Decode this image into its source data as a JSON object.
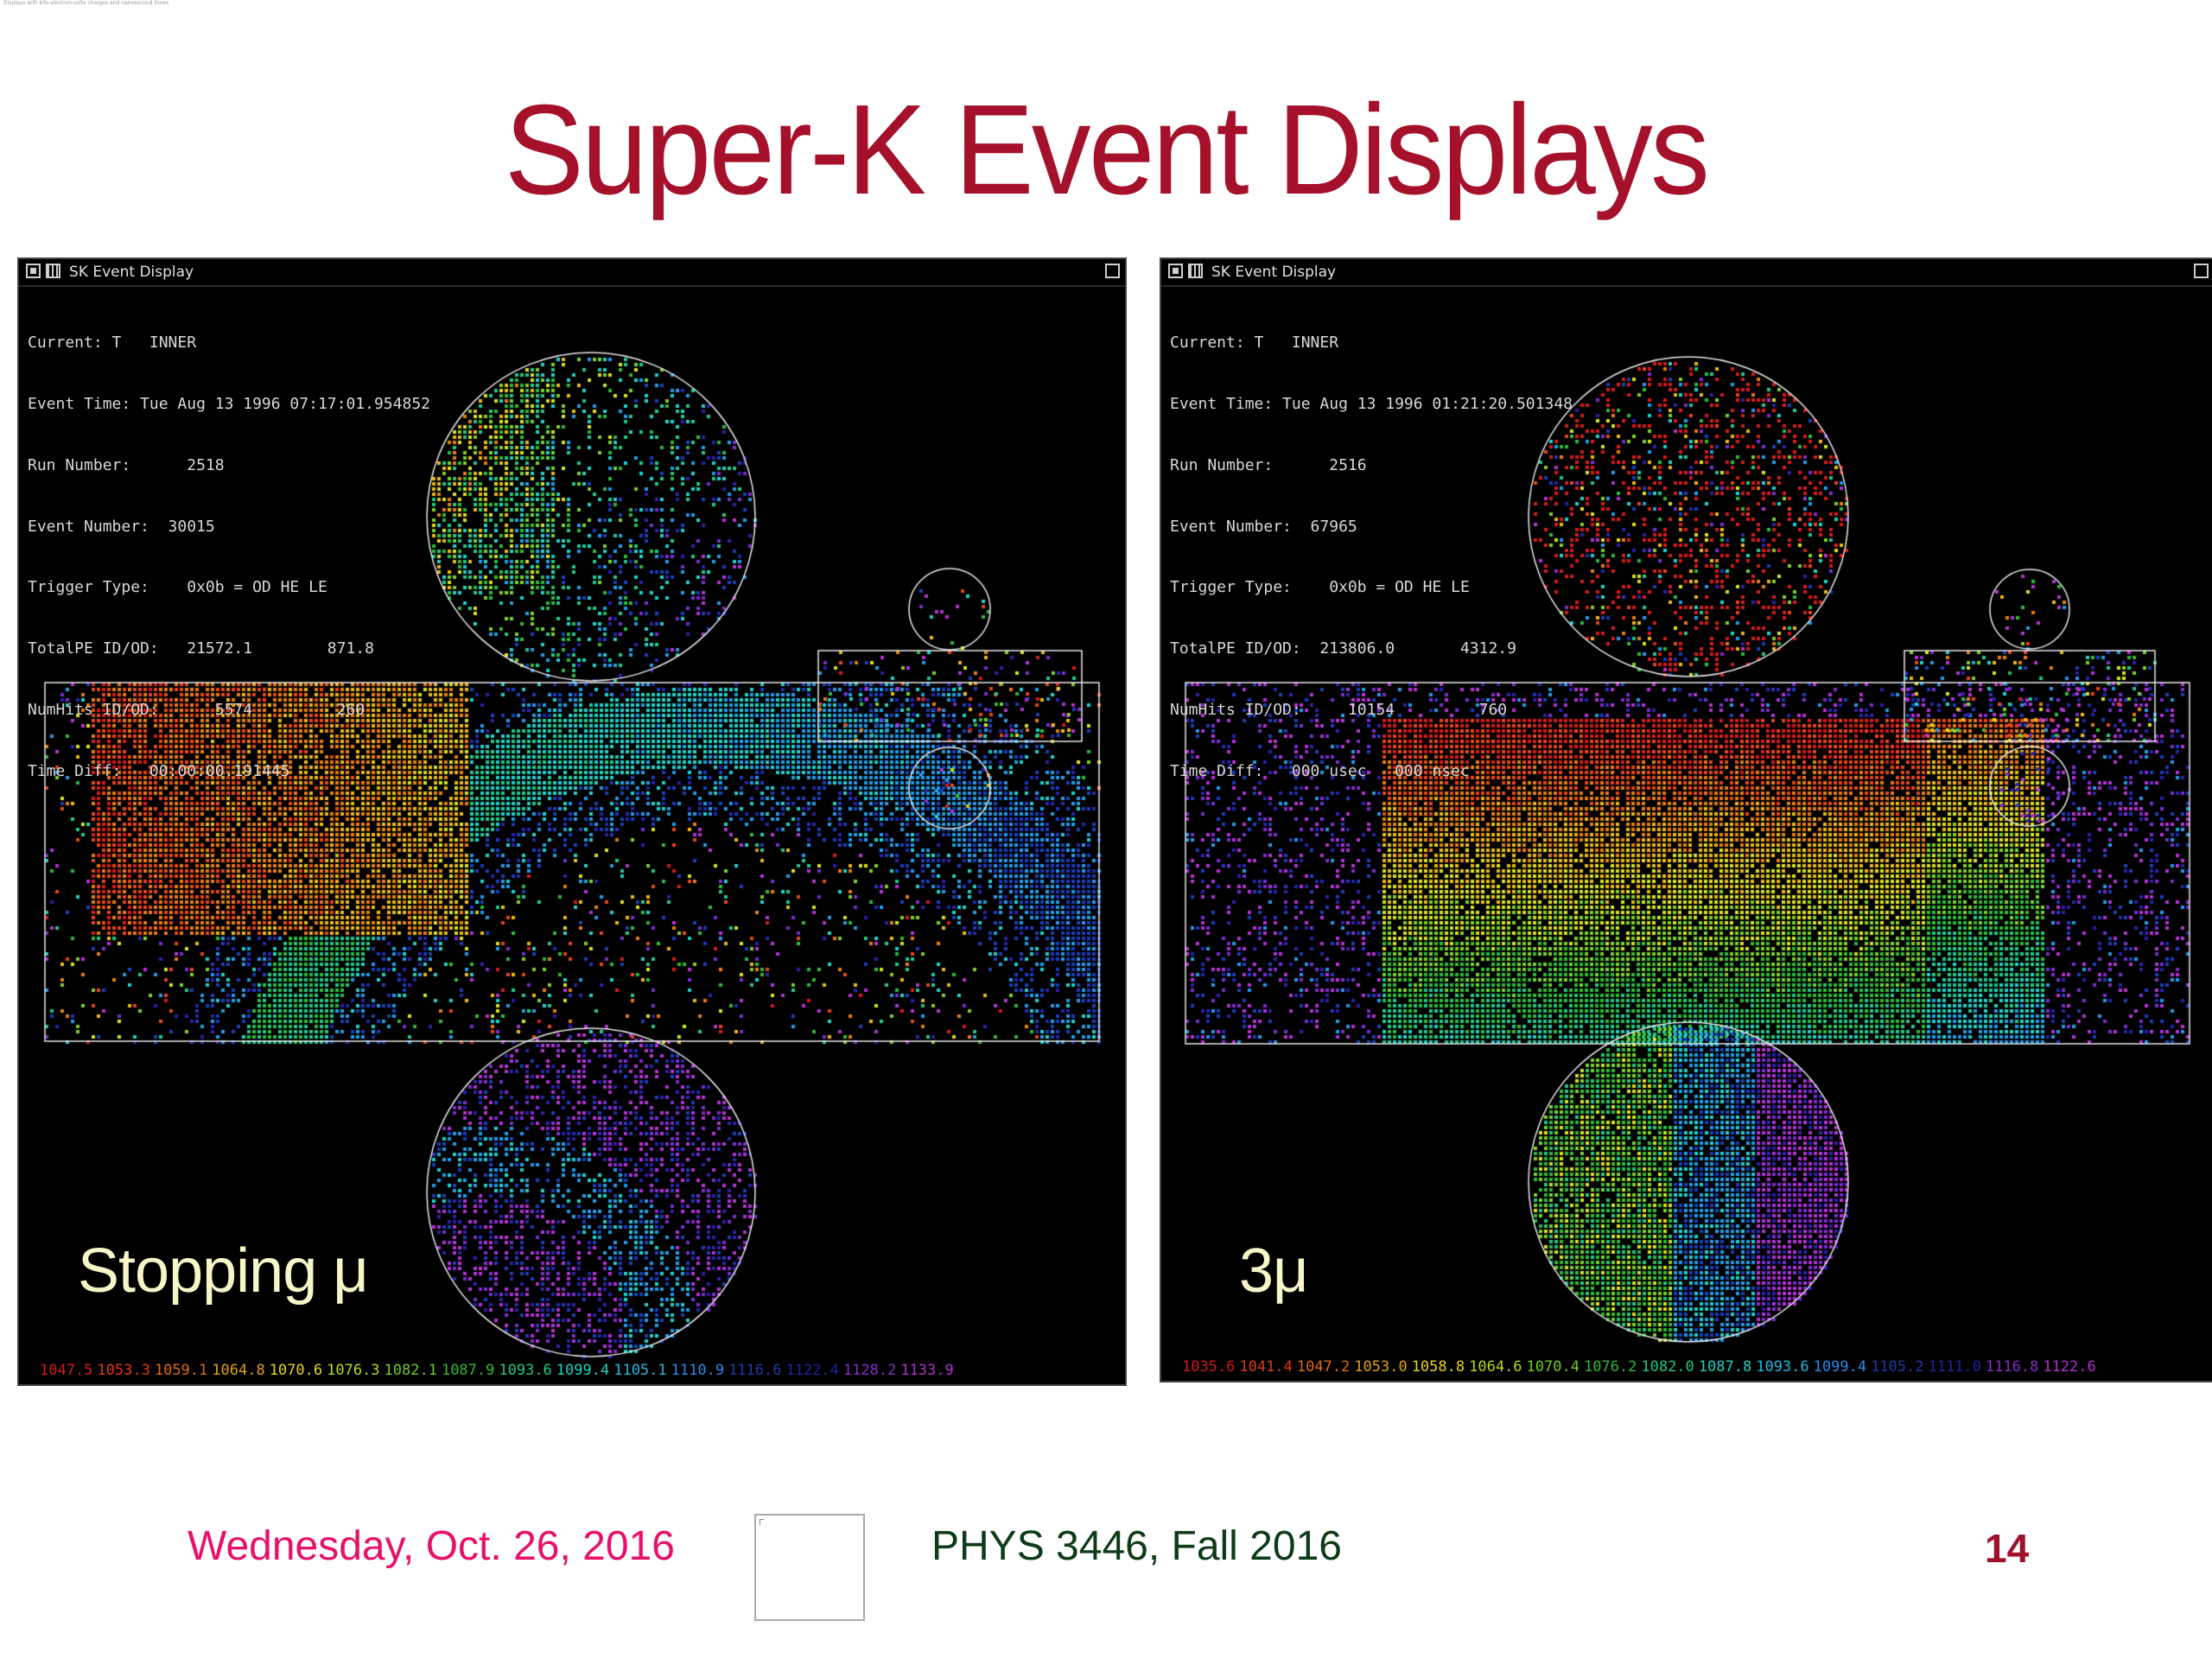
{
  "slide": {
    "title": "Super-K Event Displays",
    "top_note": "Displays with kilo-electron-volts charges and nanosecond times",
    "footer": {
      "date": "Wednesday, Oct. 26, 2016",
      "course": "PHYS 3446, Fall 2016",
      "page": "14"
    }
  },
  "colors": {
    "title": "#a5112a",
    "date": "#e8106a",
    "course": "#0e3b17",
    "page": "#a0112c"
  },
  "windows": [
    {
      "title": "SK Event Display",
      "info": [
        "Current: T   INNER",
        "Event Time: Tue Aug 13 1996 07:17:01.954852",
        "Run Number:      2518",
        "Event Number:  30015",
        "Trigger Type:    0x0b = OD HE LE",
        "TotalPE ID/OD:   21572.1        871.8",
        "NumHits ID/OD:      5574         260",
        "Time Diff:   00:00:00.191445"
      ],
      "label": "Stopping μ",
      "scale": [
        "1047.5",
        "1053.3",
        "1059.1",
        "1064.8",
        "1070.6",
        "1076.3",
        "1082.1",
        "1087.9",
        "1093.6",
        "1099.4",
        "1105.1",
        "1110.9",
        "1116.6",
        "1122.4",
        "1128.2",
        "1133.9"
      ],
      "scale_colors": [
        "#d01818",
        "#e03a12",
        "#e06a10",
        "#e0a010",
        "#e8d21a",
        "#b8d820",
        "#70cc28",
        "#30b830",
        "#22c880",
        "#20d0c0",
        "#20b8e0",
        "#2a8ae8",
        "#1a3aa8",
        "#1a24a0",
        "#8a2ac8",
        "#b030d0"
      ]
    },
    {
      "title": "SK Event Display",
      "info": [
        "Current: T   INNER",
        "Event Time: Tue Aug 13 1996 01:21:20.501348",
        "Run Number:      2516",
        "Event Number:  67965",
        "Trigger Type:    0x0b = OD HE LE",
        "TotalPE ID/OD:  213806.0       4312.9",
        "NumHits ID/OD:     10154         760",
        "Time Diff:   000 usec   000 nsec"
      ],
      "label": "3μ",
      "scale": [
        "1035.6",
        "1041.4",
        "1047.2",
        "1053.0",
        "1058.8",
        "1064.6",
        "1070.4",
        "1076.2",
        "1082.0",
        "1087.8",
        "1093.6",
        "1099.4",
        "1105.2",
        "1111.0",
        "1116.8",
        "1122.6"
      ],
      "scale_colors": [
        "#d01818",
        "#e03a12",
        "#e06a10",
        "#e0a010",
        "#e8d21a",
        "#b8d820",
        "#70cc28",
        "#30b830",
        "#22c880",
        "#20d0c0",
        "#20b8e0",
        "#2a8ae8",
        "#1a3aa8",
        "#1a24a0",
        "#8a2ac8",
        "#b030d0"
      ]
    }
  ]
}
